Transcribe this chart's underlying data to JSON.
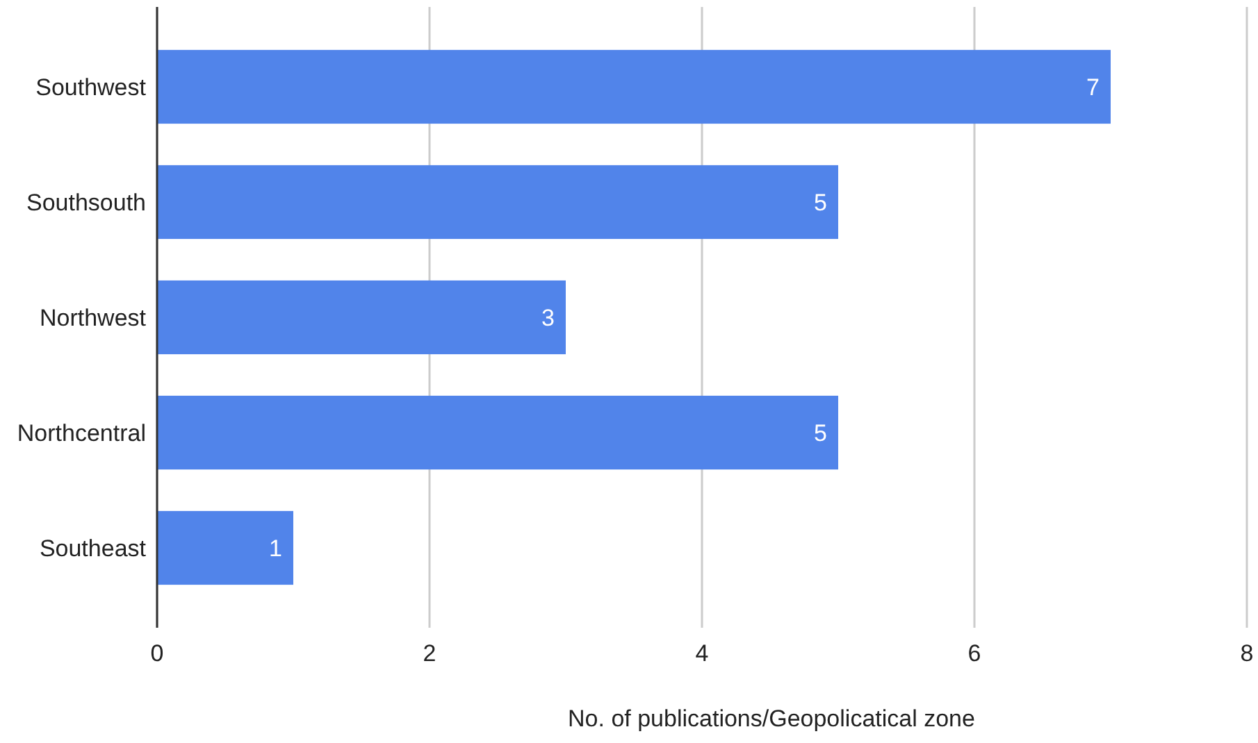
{
  "chart_data": {
    "type": "bar",
    "orientation": "horizontal",
    "xlabel": "No. of publications/Geopolicatical zone",
    "categories": [
      "Southwest",
      "Southsouth",
      "Northwest",
      "Northcentral",
      "Southeast"
    ],
    "values": [
      7,
      5,
      3,
      5,
      1
    ],
    "color": "#5184ea",
    "xlim": [
      0,
      8
    ],
    "xticks": [
      0,
      2,
      4,
      6,
      8
    ],
    "grid": "x",
    "data_labels": true
  }
}
